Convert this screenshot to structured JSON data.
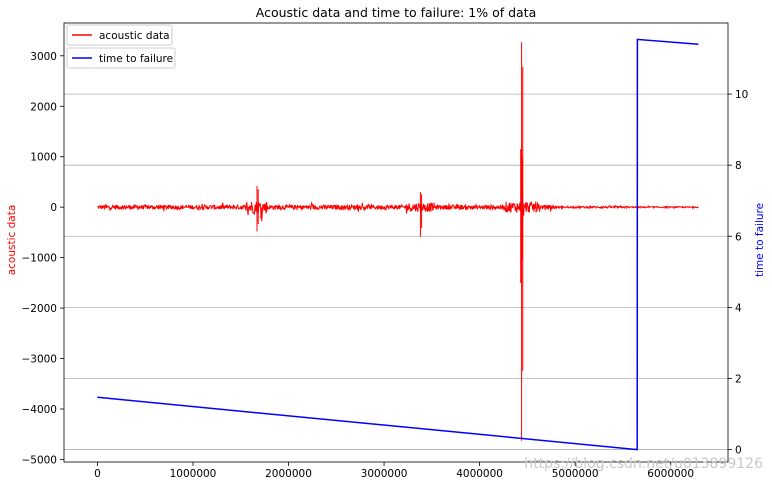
{
  "chart_data": {
    "type": "line",
    "title": "Acoustic data and time to failure: 1% of data",
    "xlim": [
      -350000,
      6600000
    ],
    "x_ticks": [
      0,
      1000000,
      2000000,
      3000000,
      4000000,
      5000000,
      6000000
    ],
    "x_tick_labels": [
      "0",
      "1000000",
      "2000000",
      "3000000",
      "4000000",
      "5000000",
      "6000000"
    ],
    "y_left": {
      "label": "acoustic data",
      "color": "#ff0000",
      "lim": [
        -5050,
        3650
      ],
      "ticks": [
        -5000,
        -4000,
        -3000,
        -2000,
        -1000,
        0,
        1000,
        2000,
        3000
      ],
      "tick_labels": [
        "−5000",
        "−4000",
        "−3000",
        "−2000",
        "−1000",
        "0",
        "1000",
        "2000",
        "3000"
      ]
    },
    "y_right": {
      "label": "time to failure",
      "color": "#0000ff",
      "lim": [
        -0.35,
        12.0
      ],
      "ticks": [
        0,
        2,
        4,
        6,
        8,
        10
      ],
      "tick_labels": [
        "0",
        "2",
        "4",
        "6",
        "8",
        "10"
      ],
      "grid": true
    },
    "series": [
      {
        "name": "acoustic data",
        "axis": "left",
        "color": "#ff0000",
        "noise_range": [
          0,
          6290000
        ],
        "baseline": 0,
        "bursts": [
          {
            "x": 1670000,
            "min": -480,
            "max": 420
          },
          {
            "x": 3380000,
            "min": -590,
            "max": 300
          },
          {
            "x": 4440000,
            "min": -4630,
            "max": 3270
          },
          {
            "x": 4430000,
            "min": -1500,
            "max": 1150
          }
        ]
      },
      {
        "name": "time to failure",
        "axis": "right",
        "color": "#0000ff",
        "x": [
          0,
          5650000,
          5652000,
          6290000
        ],
        "y": [
          1.47,
          0.0,
          11.54,
          11.4
        ]
      }
    ],
    "legend": {
      "placement": "top-left",
      "entries": [
        {
          "label": "acoustic data",
          "color": "#ff0000"
        },
        {
          "label": "time to failure",
          "color": "#0000ff"
        }
      ]
    }
  },
  "watermark": "https://blog.csdn.net/u013899126"
}
